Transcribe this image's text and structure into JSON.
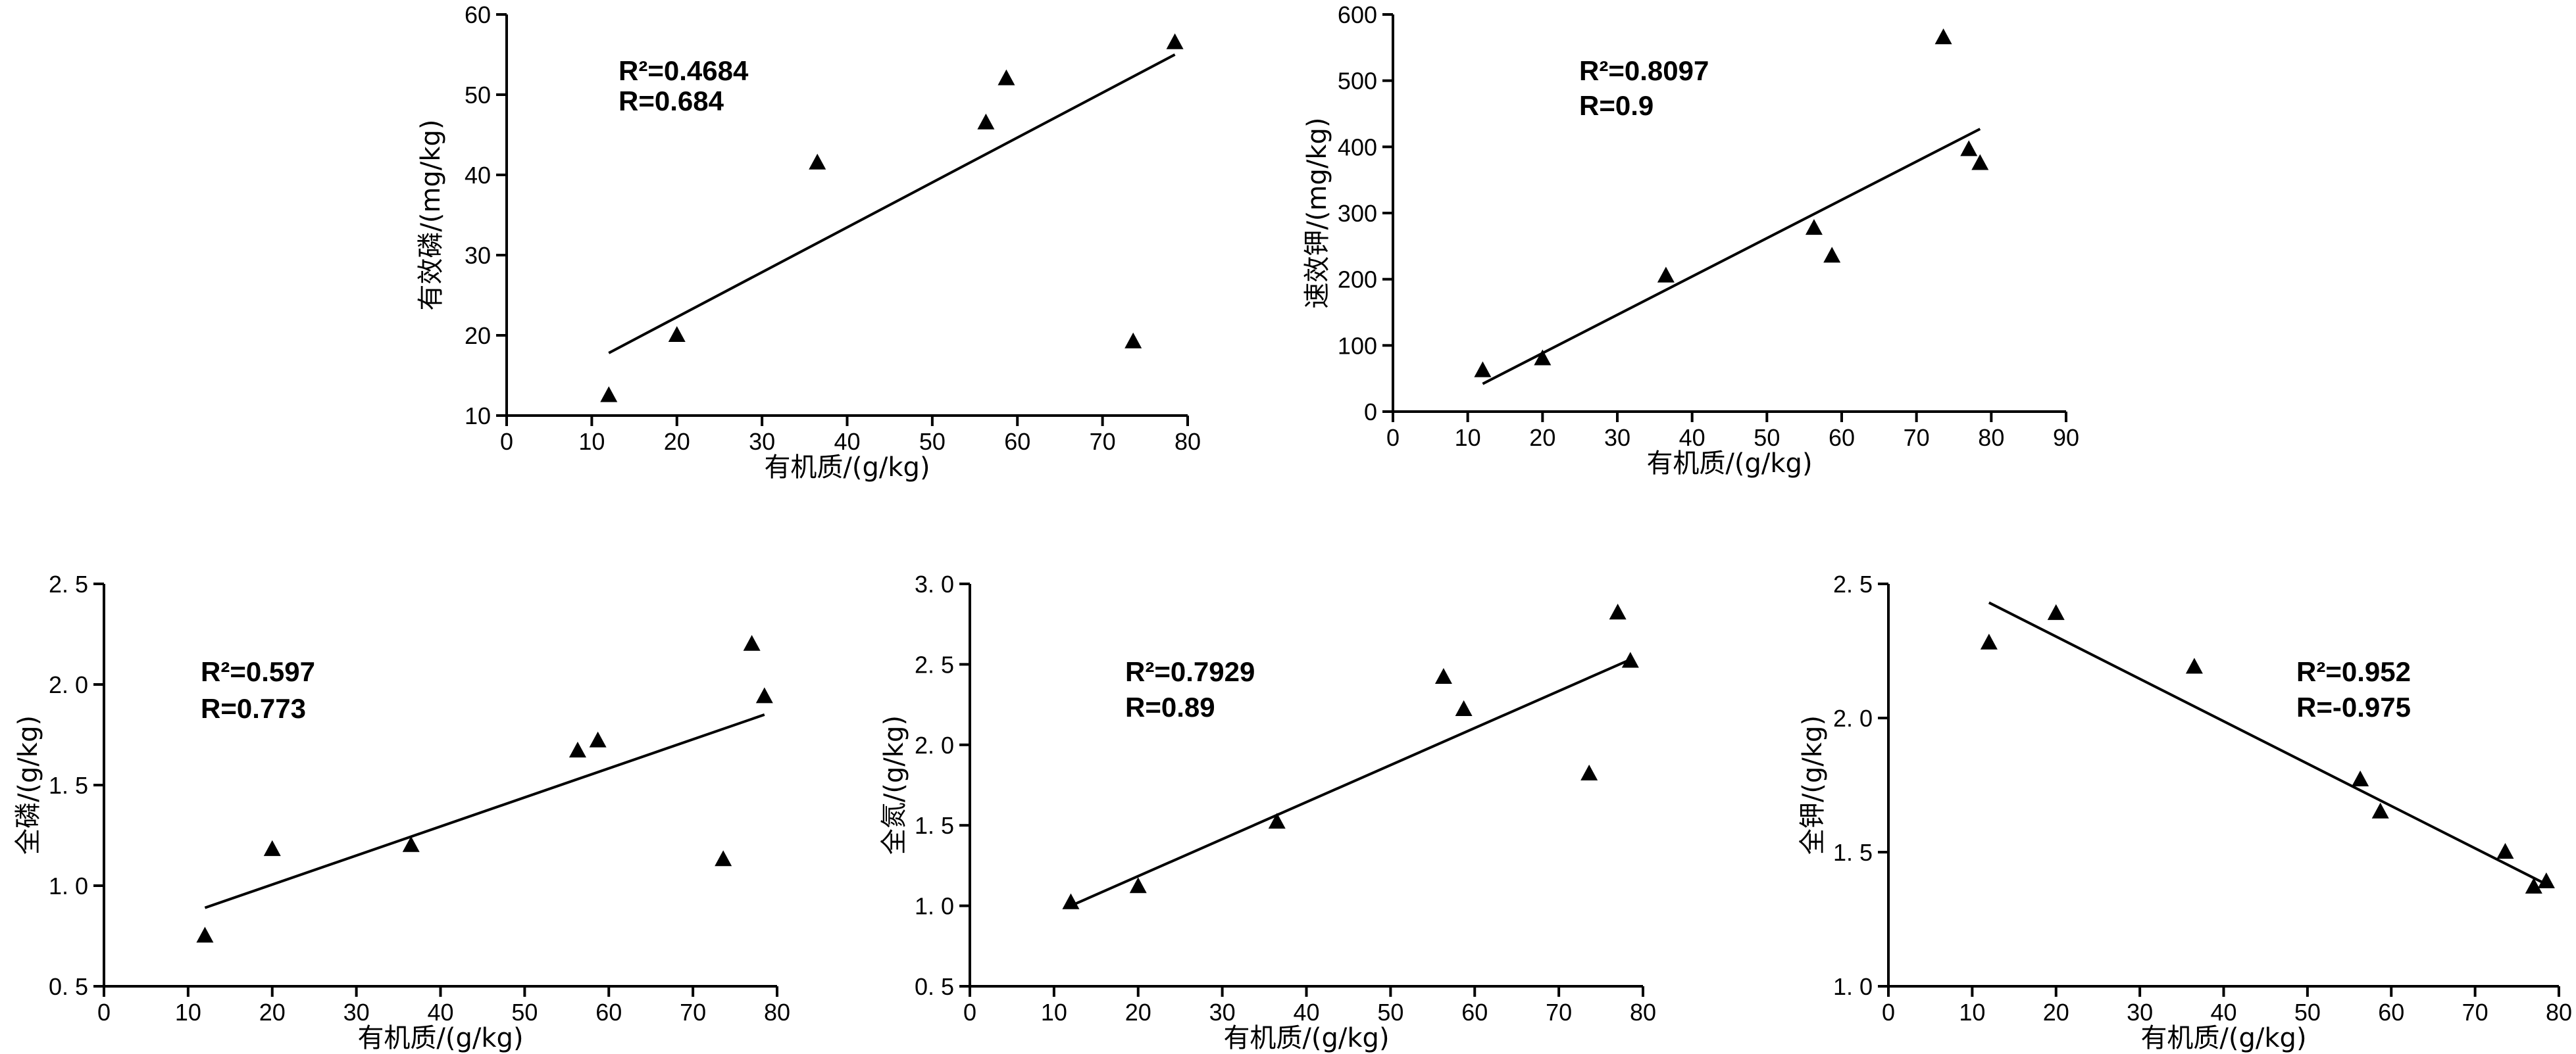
{
  "chart_data": [
    {
      "type": "scatter",
      "id": "p1",
      "xlabel": "有机质/(g/kg)",
      "ylabel": "有效磷/(mg/kg)",
      "xlim": [
        0,
        80
      ],
      "ylim": [
        10,
        60
      ],
      "xticks": [
        0,
        10,
        20,
        30,
        40,
        50,
        60,
        70,
        80
      ],
      "yticks": [
        10,
        20,
        30,
        40,
        50,
        60
      ],
      "yticklabels": [
        "10",
        "20",
        "30",
        "40",
        "50",
        "60"
      ],
      "points": [
        [
          12,
          12.5
        ],
        [
          20,
          20
        ],
        [
          36.5,
          41.5
        ],
        [
          56.3,
          46.5
        ],
        [
          58.7,
          52
        ],
        [
          73.6,
          19.2
        ],
        [
          78.5,
          56.5
        ]
      ],
      "fit": {
        "x": [
          12,
          78.5
        ],
        "y": [
          17.8,
          55
        ]
      },
      "annotation": {
        "r2_label": "R²=0.4684",
        "r_label": "R=0.684"
      }
    },
    {
      "type": "scatter",
      "id": "p2",
      "xlabel": "有机质/(g/kg)",
      "ylabel": "速效钾/(mg/kg)",
      "xlim": [
        0,
        90
      ],
      "ylim": [
        0,
        600
      ],
      "xticks": [
        0,
        10,
        20,
        30,
        40,
        50,
        60,
        70,
        80,
        90
      ],
      "yticks": [
        0,
        100,
        200,
        300,
        400,
        500,
        600
      ],
      "yticklabels": [
        "0",
        "100",
        "200",
        "300",
        "400",
        "500",
        "600"
      ],
      "points": [
        [
          12,
          62
        ],
        [
          20,
          80
        ],
        [
          36.5,
          205
        ],
        [
          56.3,
          277
        ],
        [
          58.7,
          235
        ],
        [
          73.6,
          565
        ],
        [
          77,
          396
        ],
        [
          78.5,
          375
        ]
      ],
      "fit": {
        "x": [
          12,
          78.5
        ],
        "y": [
          42,
          427
        ]
      },
      "annotation": {
        "r2_label": "R²=0.8097",
        "r_label": "R=0.9"
      }
    },
    {
      "type": "scatter",
      "id": "p3",
      "xlabel": "有机质/(g/kg)",
      "ylabel": "全磷/(g/kg)",
      "xlim": [
        0,
        80
      ],
      "ylim": [
        0.5,
        2.5
      ],
      "xticks": [
        0,
        10,
        20,
        30,
        40,
        50,
        60,
        70,
        80
      ],
      "yticks": [
        0.5,
        1.0,
        1.5,
        2.0,
        2.5
      ],
      "yticklabels": [
        "0. 5",
        "1. 0",
        "1. 5",
        "2. 0",
        "2. 5"
      ],
      "points": [
        [
          12,
          0.75
        ],
        [
          20,
          1.18
        ],
        [
          36.5,
          1.2
        ],
        [
          56.3,
          1.67
        ],
        [
          58.7,
          1.72
        ],
        [
          73.6,
          1.13
        ],
        [
          77,
          2.2
        ],
        [
          78.5,
          1.94
        ]
      ],
      "fit": {
        "x": [
          12,
          78.5
        ],
        "y": [
          0.89,
          1.85
        ]
      },
      "annotation": {
        "r2_label": "R²=0.597",
        "r_label": "R=0.773"
      }
    },
    {
      "type": "scatter",
      "id": "p4",
      "xlabel": "有机质/(g/kg)",
      "ylabel": "全氮/(g/kg)",
      "xlim": [
        0,
        80
      ],
      "ylim": [
        0.5,
        3.0
      ],
      "xticks": [
        0,
        10,
        20,
        30,
        40,
        50,
        60,
        70,
        80
      ],
      "yticks": [
        0.5,
        1.0,
        1.5,
        2.0,
        2.5,
        3.0
      ],
      "yticklabels": [
        "0. 5",
        "1. 0",
        "1. 5",
        "2. 0",
        "2. 5",
        "3. 0"
      ],
      "points": [
        [
          12,
          1.02
        ],
        [
          20,
          1.12
        ],
        [
          36.5,
          1.52
        ],
        [
          56.3,
          2.42
        ],
        [
          58.7,
          2.22
        ],
        [
          73.6,
          1.82
        ],
        [
          77,
          2.82
        ],
        [
          78.5,
          2.52
        ]
      ],
      "fit": {
        "x": [
          12,
          78.5
        ],
        "y": [
          1.0,
          2.53
        ]
      },
      "annotation": {
        "r2_label": "R²=0.7929",
        "r_label": "R=0.89"
      }
    },
    {
      "type": "scatter",
      "id": "p5",
      "xlabel": "有机质/(g/kg)",
      "ylabel": "全钾/(g/kg)",
      "xlim": [
        0,
        80
      ],
      "ylim": [
        1.0,
        2.5
      ],
      "xticks": [
        0,
        10,
        20,
        30,
        40,
        50,
        60,
        70,
        80
      ],
      "yticks": [
        1.0,
        1.5,
        2.0,
        2.5
      ],
      "yticklabels": [
        "1. 0",
        "1. 5",
        "2. 0",
        "2. 5"
      ],
      "points": [
        [
          12,
          2.28
        ],
        [
          20,
          2.39
        ],
        [
          36.5,
          2.19
        ],
        [
          56.3,
          1.77
        ],
        [
          58.7,
          1.65
        ],
        [
          73.6,
          1.5
        ],
        [
          77,
          1.37
        ],
        [
          78.5,
          1.39
        ]
      ],
      "fit": {
        "x": [
          12,
          78.5
        ],
        "y": [
          2.43,
          1.38
        ]
      },
      "annotation": {
        "r2_label": "R²=0.952",
        "r_label": "R=-0.975"
      }
    }
  ]
}
